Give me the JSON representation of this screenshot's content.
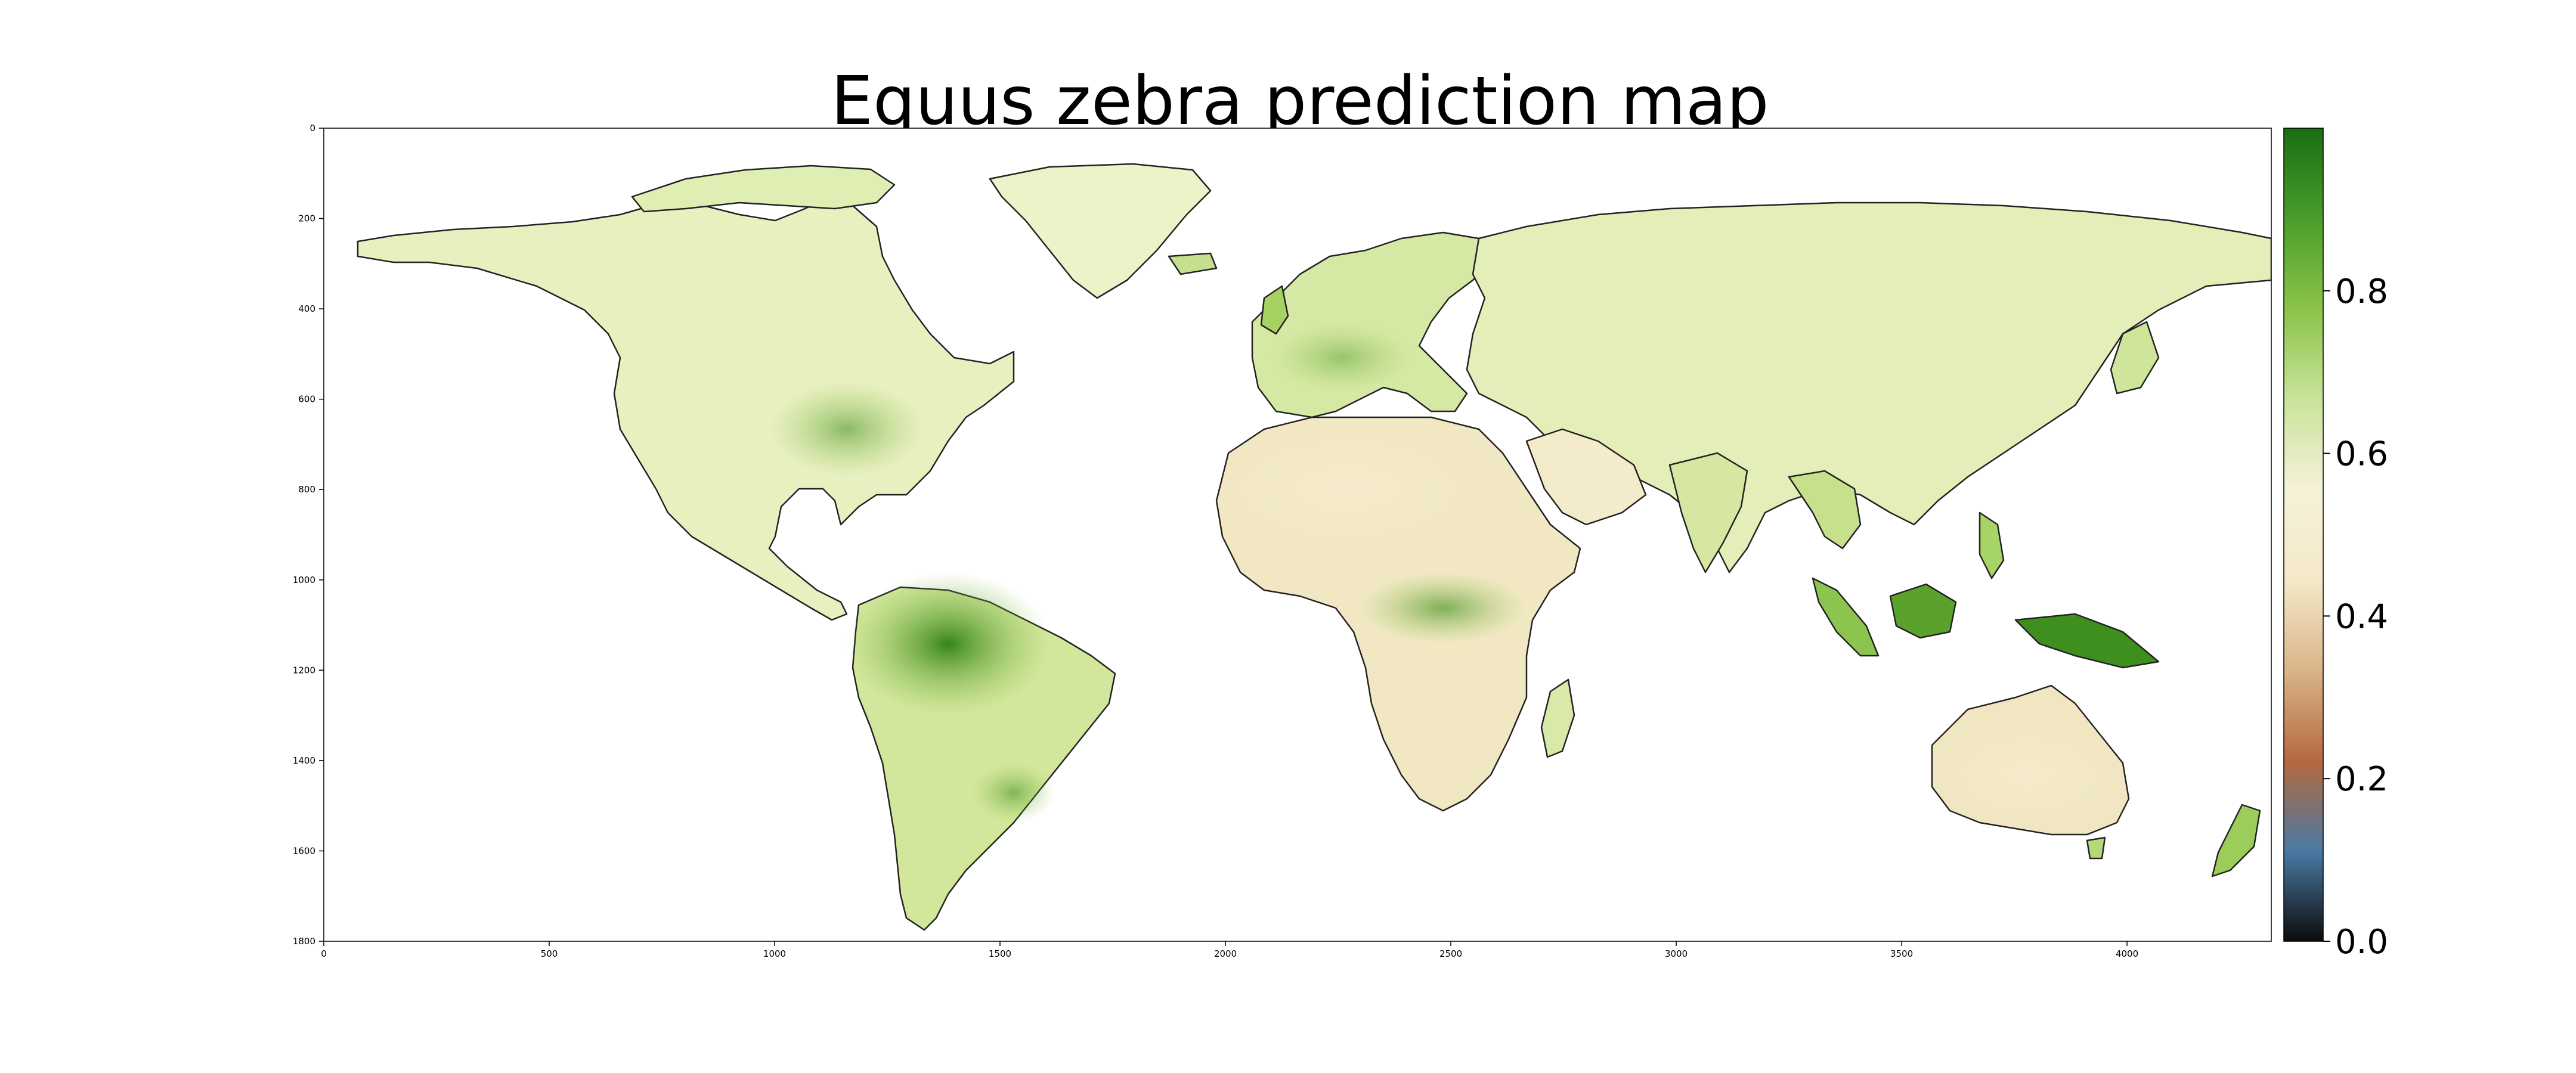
{
  "title": "Equus zebra prediction map",
  "chart_data": {
    "type": "heatmap",
    "title": "Equus zebra prediction map",
    "xlabel": "",
    "ylabel": "",
    "xlim": [
      0,
      4320
    ],
    "ylim": [
      1800,
      0
    ],
    "x_ticks": [
      0,
      500,
      1000,
      1500,
      2000,
      2500,
      3000,
      3500,
      4000
    ],
    "y_ticks": [
      0,
      200,
      400,
      600,
      800,
      1000,
      1200,
      1400,
      1600,
      1800
    ],
    "colorbar": {
      "range": [
        0.0,
        1.0
      ],
      "ticks": [
        "0.0",
        "0.2",
        "0.4",
        "0.6",
        "0.8"
      ],
      "colormap": [
        "#0b0b0b",
        "#4a7aa3",
        "#b5693f",
        "#d9b48a",
        "#f5e9c8",
        "#f5f2d9",
        "#c9e39a",
        "#8bc34a",
        "#4a9e2a",
        "#1a6e12"
      ]
    },
    "background": "no-data (white)",
    "land_fill_range": "approximately 0.4 - 0.9 predicted probability",
    "high_value_regions": [
      "Amazon basin",
      "Central Africa",
      "New Guinea",
      "Borneo",
      "Eastern North America"
    ]
  },
  "colors": {
    "background": "#ffffff",
    "land_low": "#f3e7c4",
    "land_mid": "#e6efbb",
    "land_high": "#a7d35c",
    "land_max": "#3f8f1e",
    "coast": "#1a1a1a"
  }
}
